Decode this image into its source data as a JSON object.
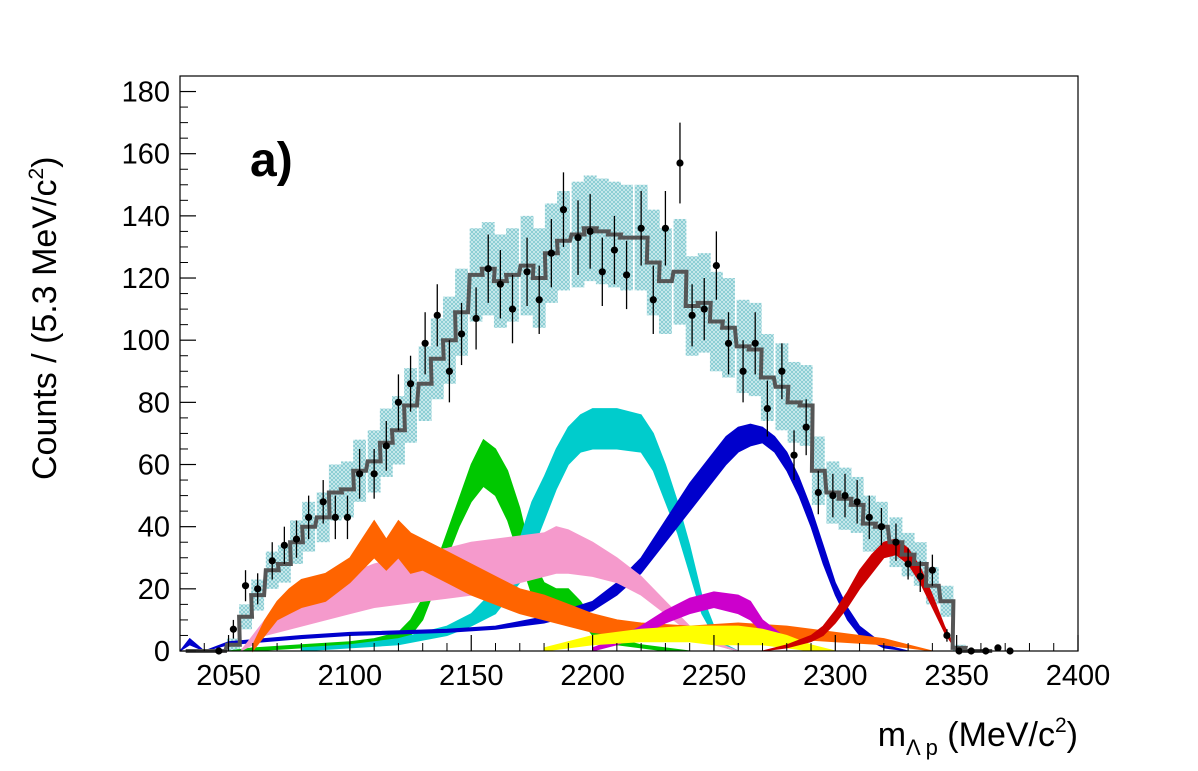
{
  "chart_data": {
    "type": "histogram",
    "panel_label": "a)",
    "xlabel": {
      "main": "m",
      "sub": "Λ p",
      "unit_pre": " (MeV/c",
      "unit_sup": "2",
      "unit_post": ")"
    },
    "ylabel": {
      "main": "Counts / (5.3 MeV/c",
      "sup": "2",
      "post": ")"
    },
    "xlim": [
      2030,
      2400
    ],
    "ylim": [
      0,
      185
    ],
    "xticks": [
      2050,
      2100,
      2150,
      2200,
      2250,
      2300,
      2350,
      2400
    ],
    "yticks": [
      0,
      20,
      40,
      60,
      80,
      100,
      120,
      140,
      160,
      180
    ],
    "bin_width": 5.3,
    "data_points": {
      "x": [
        2046,
        2052,
        2057,
        2062,
        2068,
        2073,
        2078,
        2083,
        2089,
        2094,
        2099,
        2104,
        2110,
        2115,
        2120,
        2125,
        2131,
        2136,
        2141,
        2146,
        2152,
        2157,
        2162,
        2167,
        2173,
        2178,
        2183,
        2188,
        2194,
        2199,
        2204,
        2209,
        2214,
        2220,
        2225,
        2230,
        2236,
        2241,
        2246,
        2251,
        2256,
        2262,
        2267,
        2272,
        2278,
        2283,
        2288,
        2293,
        2299,
        2304,
        2309,
        2314,
        2319,
        2325,
        2330,
        2335,
        2340,
        2346,
        2351,
        2356,
        2362,
        2367,
        2372
      ],
      "y": [
        0,
        7,
        21,
        20,
        29,
        34,
        36,
        43,
        48,
        43,
        43,
        57,
        57,
        66,
        80,
        86,
        99,
        108,
        90,
        102,
        107,
        123,
        118,
        110,
        122,
        113,
        128,
        142,
        133,
        135,
        122,
        129,
        121,
        136,
        113,
        136,
        157,
        108,
        110,
        124,
        99,
        90,
        99,
        78,
        90,
        63,
        72,
        51,
        50,
        50,
        48,
        43,
        40,
        35,
        28,
        24,
        26,
        5,
        0,
        0,
        0,
        1,
        0
      ],
      "err": [
        0,
        3,
        5,
        5,
        6,
        6,
        6,
        7,
        7,
        7,
        7,
        8,
        8,
        8,
        9,
        9,
        10,
        10,
        10,
        10,
        10,
        11,
        11,
        11,
        11,
        11,
        11,
        12,
        12,
        12,
        11,
        11,
        11,
        12,
        11,
        12,
        13,
        10,
        10,
        11,
        10,
        10,
        10,
        9,
        9,
        8,
        9,
        7,
        7,
        7,
        7,
        7,
        6,
        6,
        5,
        5,
        5,
        2,
        0,
        0,
        0,
        1,
        0
      ]
    },
    "series": [
      {
        "name": "total fit",
        "color": "#555555",
        "style": "step",
        "x": [
          2035,
          2040,
          2046,
          2052,
          2057,
          2062,
          2068,
          2073,
          2078,
          2083,
          2089,
          2094,
          2099,
          2104,
          2110,
          2115,
          2120,
          2125,
          2131,
          2136,
          2141,
          2146,
          2152,
          2157,
          2162,
          2167,
          2173,
          2178,
          2183,
          2188,
          2194,
          2199,
          2204,
          2209,
          2214,
          2220,
          2225,
          2230,
          2236,
          2241,
          2246,
          2251,
          2256,
          2262,
          2267,
          2272,
          2278,
          2283,
          2288,
          2293,
          2299,
          2304,
          2309,
          2314,
          2319,
          2325,
          2330,
          2335,
          2340,
          2346,
          2351,
          2356,
          2362
        ],
        "y": [
          0,
          0,
          0,
          2,
          11,
          18,
          26,
          28,
          35,
          40,
          43,
          51,
          52,
          58,
          61,
          67,
          71,
          79,
          86,
          94,
          100,
          109,
          121,
          123,
          119,
          121,
          124,
          120,
          128,
          132,
          134,
          136,
          135,
          134,
          133,
          133,
          125,
          119,
          122,
          111,
          112,
          106,
          104,
          98,
          97,
          88,
          85,
          80,
          79,
          58,
          51,
          49,
          47,
          41,
          40,
          35,
          31,
          28,
          21,
          16,
          1,
          0,
          0
        ],
        "sys_band": [
          0,
          0,
          0,
          2,
          4,
          5,
          6,
          6,
          7,
          8,
          8,
          9,
          9,
          10,
          10,
          11,
          11,
          12,
          12,
          13,
          14,
          14,
          15,
          15,
          15,
          15,
          16,
          16,
          16,
          16,
          17,
          17,
          17,
          17,
          17,
          17,
          17,
          17,
          17,
          16,
          16,
          16,
          16,
          15,
          15,
          14,
          14,
          13,
          13,
          11,
          10,
          10,
          9,
          9,
          8,
          8,
          7,
          7,
          6,
          5,
          1,
          0,
          0
        ]
      },
      {
        "name": "green",
        "color": "#00c800",
        "style": "band",
        "x": [
          2050,
          2060,
          2080,
          2100,
          2110,
          2120,
          2125,
          2130,
          2135,
          2140,
          2145,
          2150,
          2155,
          2160,
          2165,
          2170,
          2175,
          2180,
          2185,
          2190,
          2195,
          2200,
          2210,
          2220,
          2230,
          2240
        ],
        "lo": [
          0,
          0,
          1,
          2,
          2,
          3,
          5,
          10,
          20,
          30,
          40,
          48,
          53,
          50,
          42,
          30,
          18,
          14,
          12,
          12,
          10,
          5,
          2,
          1,
          0,
          0
        ],
        "hi": [
          0,
          1,
          2,
          3,
          4,
          6,
          10,
          17,
          27,
          38,
          49,
          60,
          68,
          65,
          58,
          46,
          30,
          22,
          20,
          20,
          16,
          10,
          4,
          2,
          1,
          0
        ]
      },
      {
        "name": "cyan",
        "color": "#00cccc",
        "style": "band",
        "x": [
          2080,
          2100,
          2120,
          2140,
          2150,
          2160,
          2170,
          2175,
          2180,
          2185,
          2190,
          2195,
          2200,
          2210,
          2220,
          2225,
          2230,
          2235,
          2240,
          2245,
          2250,
          2255,
          2260
        ],
        "lo": [
          0,
          1,
          2,
          5,
          8,
          12,
          22,
          32,
          42,
          52,
          60,
          64,
          65,
          65,
          64,
          58,
          48,
          38,
          25,
          12,
          5,
          1,
          0
        ],
        "hi": [
          1,
          2,
          4,
          8,
          12,
          20,
          36,
          48,
          56,
          65,
          72,
          76,
          78,
          78,
          76,
          70,
          60,
          48,
          34,
          18,
          8,
          2,
          0
        ]
      },
      {
        "name": "blue",
        "color": "#0000cc",
        "style": "band",
        "x": [
          2030,
          2034,
          2040,
          2050,
          2080,
          2100,
          2140,
          2160,
          2180,
          2200,
          2210,
          2220,
          2230,
          2240,
          2250,
          2255,
          2260,
          2265,
          2270,
          2275,
          2280,
          2285,
          2290,
          2295,
          2300,
          2305,
          2310,
          2320,
          2330,
          2340
        ],
        "lo": [
          0,
          2,
          0,
          2,
          4,
          5,
          6,
          7,
          9,
          13,
          18,
          25,
          35,
          45,
          55,
          60,
          64,
          66,
          67,
          64,
          58,
          50,
          40,
          28,
          18,
          10,
          5,
          1,
          0,
          0
        ],
        "hi": [
          0,
          4,
          0,
          3,
          5,
          6,
          7,
          8,
          11,
          16,
          22,
          30,
          42,
          54,
          64,
          69,
          72,
          73,
          72,
          69,
          64,
          56,
          46,
          34,
          22,
          14,
          8,
          2,
          0,
          0
        ]
      },
      {
        "name": "pink",
        "color": "#f59acc",
        "style": "band",
        "x": [
          2055,
          2060,
          2065,
          2070,
          2080,
          2090,
          2100,
          2110,
          2120,
          2130,
          2140,
          2150,
          2160,
          2170,
          2180,
          2185,
          2190,
          2200,
          2210,
          2220,
          2230,
          2240,
          2250,
          2260
        ],
        "lo": [
          0,
          2,
          5,
          6,
          8,
          10,
          12,
          14,
          15,
          16,
          17,
          18,
          20,
          22,
          24,
          25,
          25,
          24,
          22,
          18,
          12,
          6,
          2,
          0
        ],
        "hi": [
          0,
          5,
          10,
          13,
          18,
          22,
          25,
          28,
          30,
          32,
          33,
          35,
          36,
          37,
          38,
          40,
          39,
          35,
          30,
          24,
          16,
          8,
          3,
          0
        ]
      },
      {
        "name": "orange",
        "color": "#ff6400",
        "style": "band",
        "x": [
          2060,
          2065,
          2070,
          2075,
          2080,
          2090,
          2100,
          2105,
          2110,
          2115,
          2120,
          2125,
          2130,
          2140,
          2150,
          2160,
          2170,
          2180,
          2190,
          2200,
          2210,
          2220,
          2240,
          2260,
          2280,
          2300,
          2320,
          2330,
          2340
        ],
        "lo": [
          0,
          5,
          10,
          12,
          14,
          16,
          22,
          26,
          30,
          26,
          30,
          25,
          26,
          22,
          18,
          15,
          12,
          10,
          8,
          6,
          5,
          5,
          4,
          5,
          4,
          3,
          2,
          1,
          0
        ],
        "hi": [
          2,
          10,
          16,
          20,
          23,
          25,
          30,
          36,
          42,
          36,
          42,
          38,
          36,
          32,
          28,
          24,
          20,
          18,
          15,
          12,
          10,
          9,
          8,
          9,
          8,
          6,
          4,
          2,
          0
        ]
      },
      {
        "name": "magenta",
        "color": "#cc00cc",
        "style": "band",
        "x": [
          2200,
          2210,
          2220,
          2230,
          2240,
          2250,
          2260,
          2265,
          2270,
          2280,
          2290
        ],
        "lo": [
          0,
          2,
          5,
          9,
          12,
          14,
          12,
          10,
          6,
          2,
          0
        ],
        "hi": [
          1,
          4,
          8,
          13,
          17,
          19,
          18,
          16,
          10,
          4,
          0
        ]
      },
      {
        "name": "yellow",
        "color": "#ffff00",
        "style": "band",
        "x": [
          2180,
          2200,
          2220,
          2240,
          2250,
          2260,
          2270,
          2280,
          2290,
          2300
        ],
        "lo": [
          0,
          2,
          3,
          3,
          2,
          2,
          2,
          1,
          0,
          0
        ],
        "hi": [
          1,
          5,
          7,
          8,
          8,
          8,
          7,
          5,
          2,
          0
        ]
      },
      {
        "name": "red",
        "color": "#cc0000",
        "style": "band",
        "x": [
          2270,
          2280,
          2290,
          2295,
          2300,
          2305,
          2310,
          2315,
          2320,
          2325,
          2330,
          2335,
          2340,
          2345,
          2350
        ],
        "lo": [
          0,
          1,
          3,
          5,
          9,
          14,
          20,
          25,
          30,
          31,
          28,
          22,
          14,
          6,
          0
        ],
        "hi": [
          0,
          2,
          5,
          8,
          13,
          19,
          26,
          31,
          35,
          36,
          33,
          27,
          18,
          8,
          0
        ]
      }
    ]
  }
}
